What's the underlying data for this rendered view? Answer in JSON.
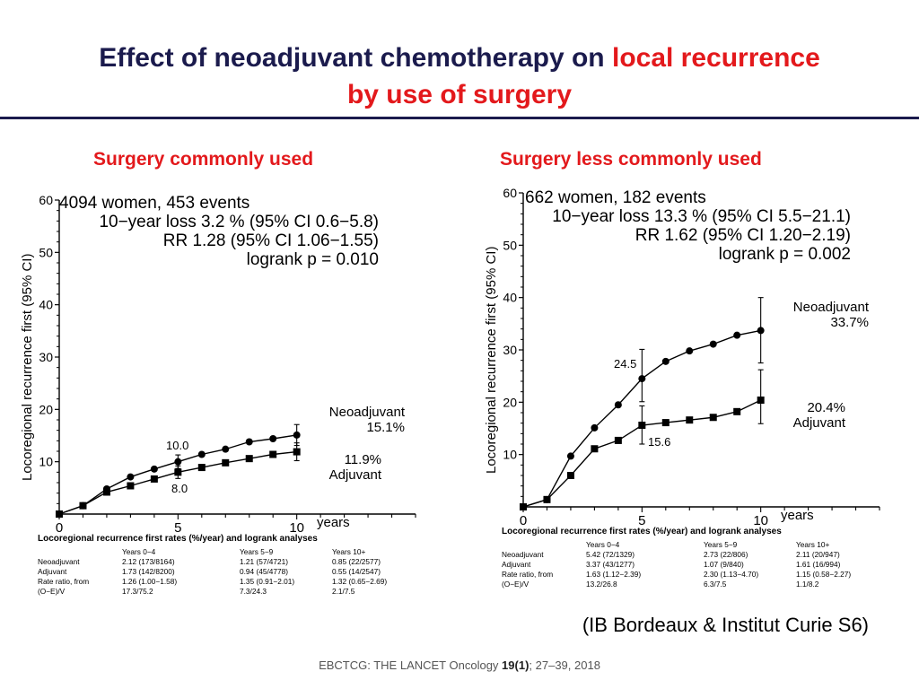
{
  "title": {
    "part1": "Effect of neoadjuvant chemotherapy on",
    "part2": "local recurrence",
    "part3": "by use of surgery"
  },
  "colors": {
    "title": "#1b1b4d",
    "highlight": "#e3191c",
    "series": "#000000"
  },
  "panels": [
    {
      "subtitle": "Surgery commonly used",
      "info": [
        "4094 women, 453 events",
        "10−year loss  3.2 % (95% CI 0.6−5.8)",
        "RR 1.28 (95% CI 1.06−1.55)",
        "logrank p = 0.010"
      ],
      "ylabel": "Locoregional recurrence first (95% CI)",
      "xunit": "years",
      "label_top": [
        "Neoadjuvant",
        "15.1%"
      ],
      "label_bottom": [
        "11.9%",
        "Adjuvant"
      ],
      "ann_top": "10.0",
      "ann_bottom": "8.0",
      "table_caption": "Locoregional recurrence first rates (%/year) and logrank analyses",
      "table_headers": [
        "",
        "Years 0−4",
        "Years 5−9",
        "Years 10+"
      ],
      "table_rows": [
        [
          "Neoadjuvant",
          "2.12 (173/8164)",
          "1.21 (57/4721)",
          "0.85 (22/2577)"
        ],
        [
          "Adjuvant",
          "1.73 (142/8200)",
          "0.94 (45/4778)",
          "0.55 (14/2547)"
        ],
        [
          "Rate ratio, from",
          "1.26 (1.00−1.58)",
          "1.35 (0.91−2.01)",
          "1.32 (0.65−2.69)"
        ],
        [
          "(O−E)/V",
          "17.3/75.2",
          "7.3/24.3",
          "2.1/7.5"
        ]
      ]
    },
    {
      "subtitle": "Surgery less commonly used",
      "info": [
        "662 women, 182 events",
        "10−year loss 13.3 % (95% CI 5.5−21.1)",
        "RR 1.62 (95% CI 1.20−2.19)",
        "logrank p = 0.002"
      ],
      "ylabel": "Locoregional recurrence first (95% CI)",
      "xunit": "years",
      "label_top": [
        "Neoadjuvant",
        "33.7%"
      ],
      "label_bottom": [
        "20.4%",
        "Adjuvant"
      ],
      "ann_top": "24.5",
      "ann_bottom": "15.6",
      "table_caption": "Locoregional recurrence first rates (%/year) and logrank analyses",
      "table_headers": [
        "",
        "Years 0−4",
        "Years 5−9",
        "Years 10+"
      ],
      "table_rows": [
        [
          "Neoadjuvant",
          "5.42 (72/1329)",
          "2.73 (22/806)",
          "2.11 (20/947)"
        ],
        [
          "Adjuvant",
          "3.37 (43/1277)",
          "1.07 (9/840)",
          "1.61 (16/994)"
        ],
        [
          "Rate ratio, from",
          "1.63 (1.12−2.39)",
          "2.30 (1.13−4.70)",
          "1.15 (0.58−2.27)"
        ],
        [
          "(O−E)/V",
          "13.2/26.8",
          "6.3/7.5",
          "1.1/8.2"
        ]
      ]
    }
  ],
  "chart_data": [
    {
      "type": "line",
      "title": "Surgery commonly used",
      "xlabel": "years",
      "ylabel": "Locoregional recurrence first (95% CI)",
      "xlim": [
        0,
        15
      ],
      "ylim": [
        0,
        60
      ],
      "xticks": [
        0,
        5,
        10
      ],
      "yticks": [
        10,
        20,
        30,
        40,
        50,
        60
      ],
      "series": [
        {
          "name": "Neoadjuvant",
          "marker": "circle",
          "x": [
            0,
            1,
            2,
            3,
            4,
            5,
            6,
            7,
            8,
            9,
            10
          ],
          "y": [
            0,
            1.6,
            4.8,
            7.1,
            8.6,
            10.0,
            11.4,
            12.4,
            13.8,
            14.4,
            15.1
          ],
          "ci": [
            {
              "x": 5,
              "low": 8.7,
              "high": 11.3
            },
            {
              "x": 10,
              "low": 13.1,
              "high": 17.1
            }
          ]
        },
        {
          "name": "Adjuvant",
          "marker": "square",
          "x": [
            0,
            1,
            2,
            3,
            4,
            5,
            6,
            7,
            8,
            9,
            10
          ],
          "y": [
            0,
            1.6,
            4.2,
            5.4,
            6.7,
            8.0,
            8.9,
            9.8,
            10.6,
            11.4,
            11.9
          ],
          "ci": [
            {
              "x": 5,
              "low": 6.8,
              "high": 9.2
            },
            {
              "x": 10,
              "low": 10.2,
              "high": 13.6
            }
          ]
        }
      ]
    },
    {
      "type": "line",
      "title": "Surgery less commonly used",
      "xlabel": "years",
      "ylabel": "Locoregional recurrence first (95% CI)",
      "xlim": [
        0,
        15
      ],
      "ylim": [
        0,
        60
      ],
      "xticks": [
        0,
        5,
        10
      ],
      "yticks": [
        10,
        20,
        30,
        40,
        50,
        60
      ],
      "series": [
        {
          "name": "Neoadjuvant",
          "marker": "circle",
          "x": [
            0,
            1,
            2,
            3,
            4,
            5,
            6,
            7,
            8,
            9,
            10
          ],
          "y": [
            0,
            1.4,
            9.7,
            15.1,
            19.5,
            24.5,
            27.8,
            29.8,
            31.1,
            32.8,
            33.7
          ],
          "ci": [
            {
              "x": 5,
              "low": 20.1,
              "high": 30.1
            },
            {
              "x": 10,
              "low": 27.5,
              "high": 40.0
            }
          ]
        },
        {
          "name": "Adjuvant",
          "marker": "square",
          "x": [
            0,
            1,
            2,
            3,
            4,
            5,
            6,
            7,
            8,
            9,
            10
          ],
          "y": [
            0,
            1.4,
            6.0,
            11.1,
            12.7,
            15.6,
            16.1,
            16.6,
            17.1,
            18.2,
            20.4
          ],
          "ci": [
            {
              "x": 5,
              "low": 12.0,
              "high": 19.3
            },
            {
              "x": 10,
              "low": 15.9,
              "high": 26.2
            }
          ]
        }
      ]
    }
  ],
  "source": "(IB Bordeaux & Institut Curie S6)",
  "citation": {
    "prefix": "EBCTCG: THE LANCET Oncology ",
    "volume": "19(1)",
    "suffix": ";  27–39, 2018"
  }
}
